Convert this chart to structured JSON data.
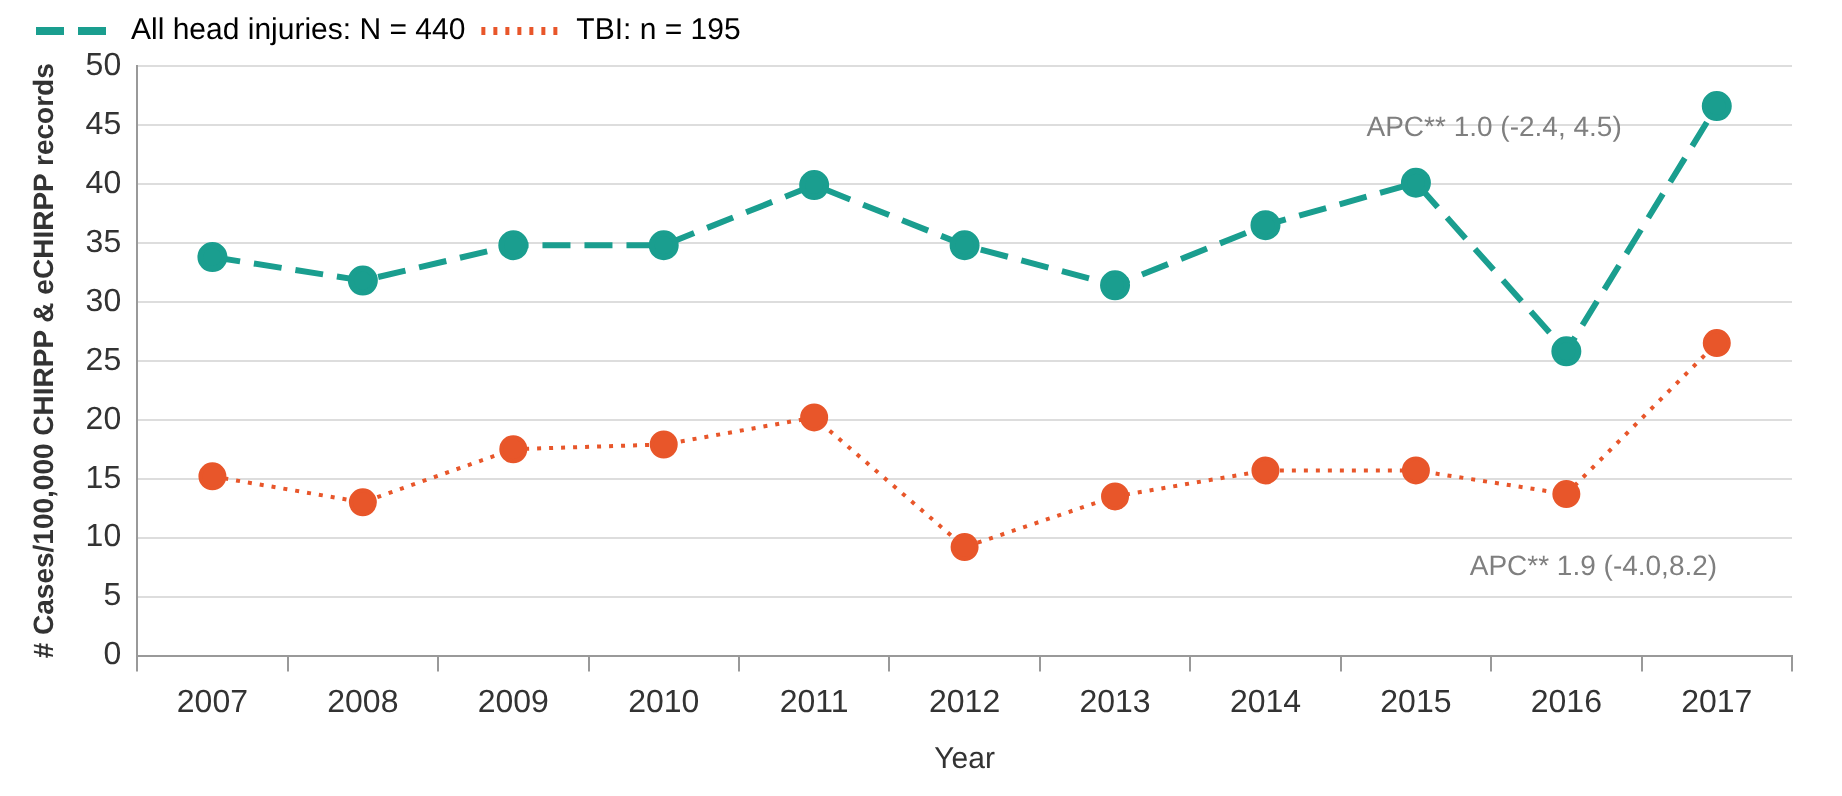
{
  "chart_data": {
    "type": "line",
    "xlabel": "Year",
    "ylabel": "# Cases/100,000 CHIRPP & eCHIRPP records",
    "categories": [
      "2007",
      "2008",
      "2009",
      "2010",
      "2011",
      "2012",
      "2013",
      "2014",
      "2015",
      "2016",
      "2017"
    ],
    "series": [
      {
        "name": "All head injuries: N = 440",
        "color": "#1a9e8f",
        "line_style": "dashed",
        "values": [
          33.8,
          31.8,
          34.8,
          34.8,
          39.9,
          34.8,
          31.4,
          36.5,
          40.1,
          25.8,
          46.6
        ]
      },
      {
        "name": "TBI: n = 195",
        "color": "#e8562a",
        "line_style": "dotted",
        "values": [
          15.2,
          13.0,
          17.5,
          17.9,
          20.2,
          9.2,
          13.5,
          15.7,
          15.7,
          13.7,
          26.5
        ]
      }
    ],
    "ylim": [
      0,
      50
    ],
    "yticks": [
      0,
      5,
      10,
      15,
      20,
      25,
      30,
      35,
      40,
      45,
      50
    ],
    "grid": "y",
    "legend": "top left",
    "marker": "circle",
    "annotations": [
      "APC** 1.0 (-2.4, 4.5)",
      "APC** 1.9 (-4.0,8.2)"
    ]
  }
}
